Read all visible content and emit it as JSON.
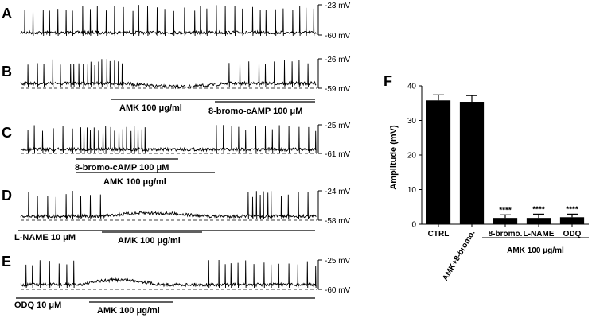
{
  "panels": [
    {
      "letter": "A",
      "top_mv": "-23 mV",
      "bottom_mv": "-60 mV",
      "labels": []
    },
    {
      "letter": "B",
      "top_mv": "-26 mV",
      "bottom_mv": "-59 mV",
      "labels": [
        {
          "text": "AMK 100 μg/ml"
        },
        {
          "text": "8-bromo-cAMP 100 μM"
        }
      ]
    },
    {
      "letter": "C",
      "top_mv": "-25 mV",
      "bottom_mv": "-61 mV",
      "labels": [
        {
          "text": "8-bromo-cAMP 100 μM"
        },
        {
          "text": "AMK 100 μg/ml"
        }
      ]
    },
    {
      "letter": "D",
      "top_mv": "-24 mV",
      "bottom_mv": "-58 mV",
      "labels": [
        {
          "text": "L-NAME 10 μM"
        },
        {
          "text": "AMK 100 μg/ml"
        }
      ]
    },
    {
      "letter": "E",
      "top_mv": "-25 mV",
      "bottom_mv": "-60 mV",
      "labels": [
        {
          "text": "ODQ 10 μM"
        },
        {
          "text": "AMK 100 μg/ml"
        }
      ]
    }
  ],
  "bar_panel": {
    "letter": "F",
    "ylabel": "Amplitude (mV)",
    "group_label": "AMK 100 μg/ml"
  },
  "chart_data": {
    "type": "bar",
    "categories": [
      "CTRL",
      "AMK+8-bromo.",
      "8-bromo.",
      "L-NAME",
      "ODQ"
    ],
    "values": [
      35.8,
      35.4,
      1.8,
      1.8,
      2.0
    ],
    "errors": [
      1.6,
      1.8,
      0.9,
      1.1,
      0.9
    ],
    "annotations": [
      "",
      "",
      "****",
      "****",
      "****"
    ],
    "ylabel": "Amplitude (mV)",
    "ylim": [
      0,
      40
    ],
    "yticks": [
      0,
      10,
      20,
      30,
      40
    ],
    "grid": false,
    "bar_color": "#000000"
  }
}
